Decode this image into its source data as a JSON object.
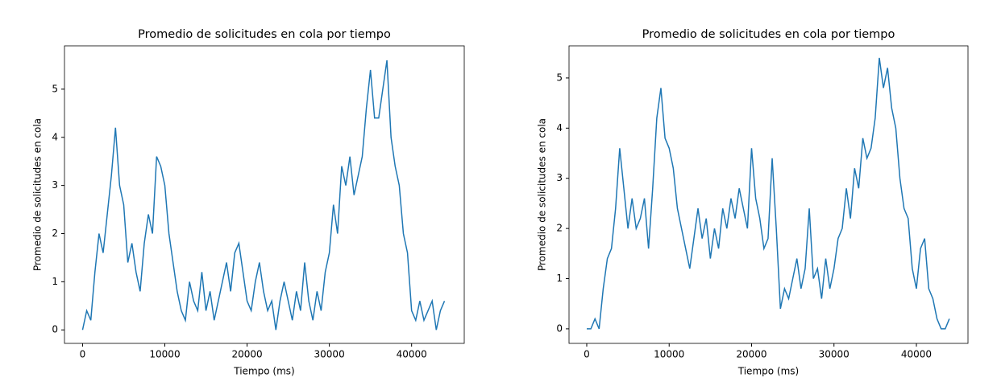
{
  "chart_data": [
    {
      "type": "line",
      "title": "Promedio de solicitudes en cola por tiempo",
      "xlabel": "Tiempo (ms)",
      "ylabel": "Promedio de solicitudes en cola",
      "color": "#1f77b4",
      "x": [
        0,
        500,
        1000,
        1500,
        2000,
        2500,
        3000,
        3500,
        4000,
        4500,
        5000,
        5500,
        6000,
        6500,
        7000,
        7500,
        8000,
        8500,
        9000,
        9500,
        10000,
        10500,
        11000,
        11500,
        12000,
        12500,
        13000,
        13500,
        14000,
        14500,
        15000,
        15500,
        16000,
        16500,
        17000,
        17500,
        18000,
        18500,
        19000,
        19500,
        20000,
        20500,
        21000,
        21500,
        22000,
        22500,
        23000,
        23500,
        24000,
        24500,
        25000,
        25500,
        26000,
        26500,
        27000,
        27500,
        28000,
        28500,
        29000,
        29500,
        30000,
        30500,
        31000,
        31500,
        32000,
        32500,
        33000,
        33500,
        34000,
        34500,
        35000,
        35500,
        36000,
        36500,
        37000,
        37500,
        38000,
        38500,
        39000,
        39500,
        40000,
        40500,
        41000,
        41500,
        42000,
        42500,
        43000,
        43500,
        44000
      ],
      "values": [
        0,
        0.4,
        0.2,
        1.2,
        2.0,
        1.6,
        2.4,
        3.2,
        4.2,
        3.0,
        2.6,
        1.4,
        1.8,
        1.2,
        0.8,
        1.8,
        2.4,
        2.0,
        3.6,
        3.4,
        3.0,
        2.0,
        1.4,
        0.8,
        0.4,
        0.2,
        1.0,
        0.6,
        0.4,
        1.2,
        0.4,
        0.8,
        0.2,
        0.6,
        1.0,
        1.4,
        0.8,
        1.6,
        1.8,
        1.2,
        0.6,
        0.4,
        1.0,
        1.4,
        0.8,
        0.4,
        0.6,
        0.0,
        0.6,
        1.0,
        0.6,
        0.2,
        0.8,
        0.4,
        1.4,
        0.6,
        0.2,
        0.8,
        0.4,
        1.2,
        1.6,
        2.6,
        2.0,
        3.4,
        3.0,
        3.6,
        2.8,
        3.2,
        3.6,
        4.6,
        5.4,
        4.4,
        4.4,
        5.0,
        5.6,
        4.0,
        3.4,
        3.0,
        2.0,
        1.6,
        0.4,
        0.2,
        0.6,
        0.2,
        0.4,
        0.6,
        0.0,
        0.4,
        0.6
      ],
      "xlim": [
        -2200,
        46400
      ],
      "ylim": [
        -0.28,
        5.9
      ],
      "xticks": [
        0,
        10000,
        20000,
        30000,
        40000
      ],
      "yticks": [
        0,
        1,
        2,
        3,
        4,
        5
      ]
    },
    {
      "type": "line",
      "title": "Promedio de solicitudes en cola por tiempo",
      "xlabel": "Tiempo (ms)",
      "ylabel": "Promedio de solicitudes en cola",
      "color": "#1f77b4",
      "x": [
        0,
        500,
        1000,
        1500,
        2000,
        2500,
        3000,
        3500,
        4000,
        4500,
        5000,
        5500,
        6000,
        6500,
        7000,
        7500,
        8000,
        8500,
        9000,
        9500,
        10000,
        10500,
        11000,
        11500,
        12000,
        12500,
        13000,
        13500,
        14000,
        14500,
        15000,
        15500,
        16000,
        16500,
        17000,
        17500,
        18000,
        18500,
        19000,
        19500,
        20000,
        20500,
        21000,
        21500,
        22000,
        22500,
        23000,
        23500,
        24000,
        24500,
        25000,
        25500,
        26000,
        26500,
        27000,
        27500,
        28000,
        28500,
        29000,
        29500,
        30000,
        30500,
        31000,
        31500,
        32000,
        32500,
        33000,
        33500,
        34000,
        34500,
        35000,
        35500,
        36000,
        36500,
        37000,
        37500,
        38000,
        38500,
        39000,
        39500,
        40000,
        40500,
        41000,
        41500,
        42000,
        42500,
        43000,
        43500,
        44000
      ],
      "values": [
        0,
        0,
        0.2,
        0,
        0.8,
        1.4,
        1.6,
        2.4,
        3.6,
        2.8,
        2.0,
        2.6,
        2.0,
        2.2,
        2.6,
        1.6,
        2.8,
        4.2,
        4.8,
        3.8,
        3.6,
        3.2,
        2.4,
        2.0,
        1.6,
        1.2,
        1.8,
        2.4,
        1.8,
        2.2,
        1.4,
        2.0,
        1.6,
        2.4,
        2.0,
        2.6,
        2.2,
        2.8,
        2.4,
        2.0,
        3.6,
        2.6,
        2.2,
        1.6,
        1.8,
        3.4,
        2.0,
        0.4,
        0.8,
        0.6,
        1.0,
        1.4,
        0.8,
        1.2,
        2.4,
        1.0,
        1.2,
        0.6,
        1.4,
        0.8,
        1.2,
        1.8,
        2.0,
        2.8,
        2.2,
        3.2,
        2.8,
        3.8,
        3.4,
        3.6,
        4.2,
        5.4,
        4.8,
        5.2,
        4.4,
        4.0,
        3.0,
        2.4,
        2.2,
        1.2,
        0.8,
        1.6,
        1.8,
        0.8,
        0.6,
        0.2,
        0.0,
        0.0,
        0.2
      ],
      "xlim": [
        -2150,
        46260
      ],
      "ylim": [
        -0.29,
        5.64
      ],
      "xticks": [
        0,
        10000,
        20000,
        30000,
        40000
      ],
      "yticks": [
        0,
        1,
        2,
        3,
        4,
        5
      ]
    }
  ]
}
